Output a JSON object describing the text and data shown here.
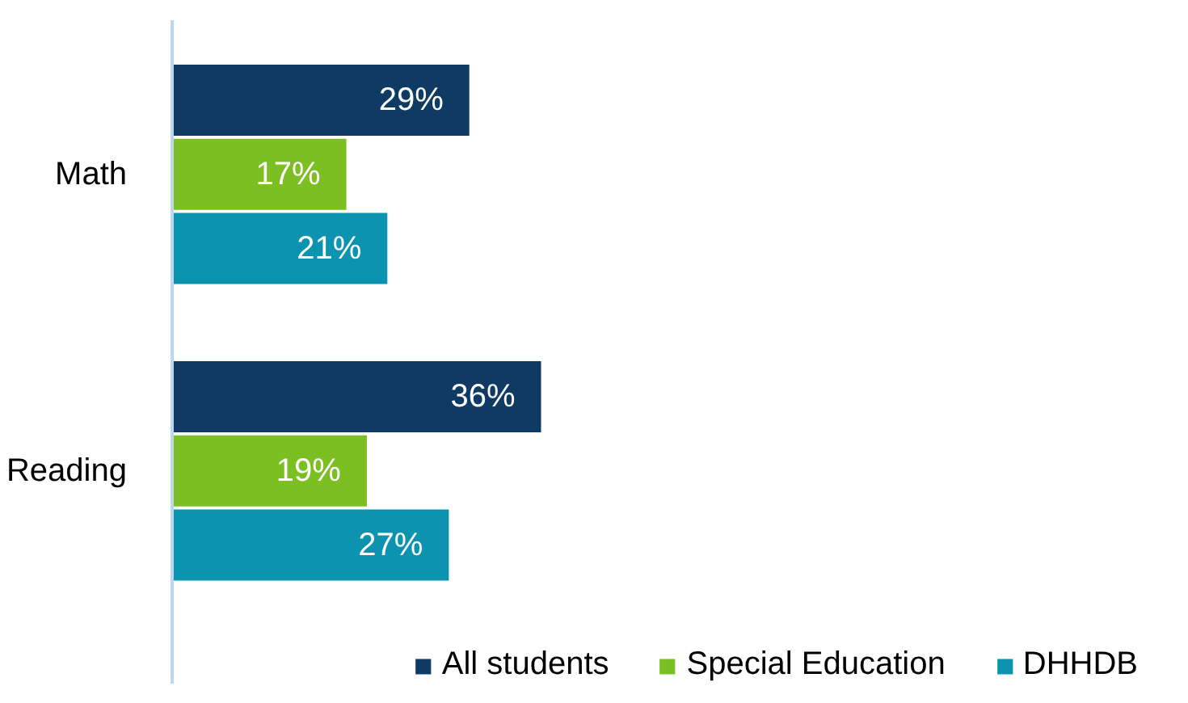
{
  "chart_data": {
    "type": "bar",
    "orientation": "horizontal",
    "tick_labels": "y",
    "categories": [
      "Math",
      "Reading"
    ],
    "series": [
      {
        "name": "All students",
        "color": "#0f3a64",
        "values": [
          29,
          36
        ],
        "value_labels": [
          "29%",
          "36%"
        ]
      },
      {
        "name": "Special Education",
        "color": "#7cbf22",
        "values": [
          17,
          19
        ],
        "value_labels": [
          "17%",
          "19%"
        ]
      },
      {
        "name": "DHHDB",
        "color": "#0c93b0",
        "values": [
          21,
          27
        ],
        "value_labels": [
          "21%",
          "27%"
        ]
      }
    ],
    "legend": "bottom"
  }
}
